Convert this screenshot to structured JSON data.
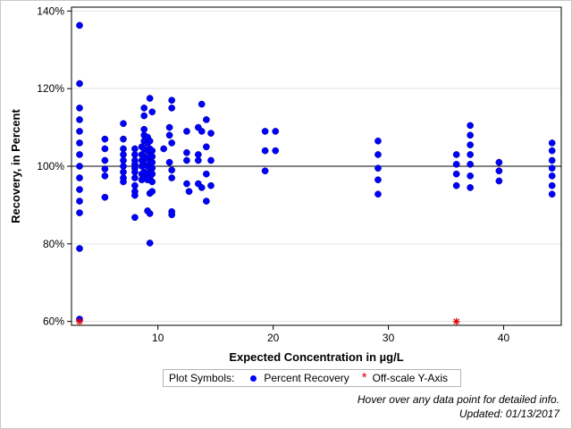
{
  "chart_data": {
    "type": "scatter",
    "xlabel": "Expected Concentration in µg/L",
    "ylabel": "Recovery, in Percent",
    "xlim": [
      2.5,
      45
    ],
    "ylim": [
      59,
      141
    ],
    "xticks": [
      10,
      20,
      30,
      40
    ],
    "yticks": [
      60,
      80,
      100,
      120,
      140
    ],
    "ytick_labels": [
      "60%",
      "80%",
      "100%",
      "120%",
      "140%"
    ],
    "reference_line_y": 100,
    "grid": "horizontal",
    "colors": {
      "recovery": "#0000ff",
      "offscale": "#e00000",
      "grid": "#e2e2e2"
    },
    "series": [
      {
        "name": "Percent Recovery",
        "marker": "circle",
        "points": [
          [
            3.2,
            136.3
          ],
          [
            3.2,
            121.3
          ],
          [
            3.2,
            115.0
          ],
          [
            3.2,
            112.0
          ],
          [
            3.2,
            109.0
          ],
          [
            3.2,
            106.0
          ],
          [
            3.2,
            103.0
          ],
          [
            3.2,
            100.0
          ],
          [
            3.2,
            97.0
          ],
          [
            3.2,
            94.0
          ],
          [
            3.2,
            91.0
          ],
          [
            3.2,
            88.0
          ],
          [
            3.2,
            78.8
          ],
          [
            3.2,
            60.6
          ],
          [
            5.4,
            107.0
          ],
          [
            5.4,
            104.5
          ],
          [
            5.4,
            101.5
          ],
          [
            5.4,
            99.3
          ],
          [
            5.4,
            97.5
          ],
          [
            5.4,
            92.0
          ],
          [
            7.0,
            111.0
          ],
          [
            7.0,
            107.0
          ],
          [
            7.0,
            104.5
          ],
          [
            7.0,
            103.0
          ],
          [
            7.0,
            101.5
          ],
          [
            7.0,
            100.0
          ],
          [
            7.0,
            98.5
          ],
          [
            7.0,
            97.0
          ],
          [
            7.0,
            96.0
          ],
          [
            8.0,
            104.5
          ],
          [
            8.0,
            103.0
          ],
          [
            8.0,
            101.5
          ],
          [
            8.0,
            100.5
          ],
          [
            8.0,
            99.5
          ],
          [
            8.0,
            98.5
          ],
          [
            8.0,
            97.0
          ],
          [
            8.0,
            95.0
          ],
          [
            8.0,
            93.5
          ],
          [
            8.0,
            92.5
          ],
          [
            8.0,
            86.8
          ],
          [
            8.6,
            105.0
          ],
          [
            8.6,
            103.0
          ],
          [
            8.6,
            101.5
          ],
          [
            8.6,
            100.0
          ],
          [
            8.6,
            98.0
          ],
          [
            8.6,
            96.5
          ],
          [
            8.8,
            115.0
          ],
          [
            8.8,
            113.0
          ],
          [
            8.8,
            109.5
          ],
          [
            8.8,
            108.0
          ],
          [
            8.8,
            106.5
          ],
          [
            8.8,
            104.5
          ],
          [
            8.8,
            102.5
          ],
          [
            8.8,
            100.5
          ],
          [
            8.8,
            98.5
          ],
          [
            8.8,
            97.0
          ],
          [
            9.1,
            107.5
          ],
          [
            9.1,
            106.0
          ],
          [
            9.1,
            104.0
          ],
          [
            9.1,
            102.0
          ],
          [
            9.1,
            100.0
          ],
          [
            9.1,
            98.0
          ],
          [
            9.1,
            96.5
          ],
          [
            9.1,
            88.5
          ],
          [
            9.3,
            117.5
          ],
          [
            9.3,
            106.5
          ],
          [
            9.3,
            104.5
          ],
          [
            9.3,
            102.5
          ],
          [
            9.3,
            100.5
          ],
          [
            9.3,
            98.5
          ],
          [
            9.3,
            97.0
          ],
          [
            9.3,
            93.0
          ],
          [
            9.3,
            87.8
          ],
          [
            9.3,
            80.2
          ],
          [
            9.5,
            114.0
          ],
          [
            9.5,
            104.0
          ],
          [
            9.5,
            102.5
          ],
          [
            9.5,
            101.0
          ],
          [
            9.5,
            99.5
          ],
          [
            9.5,
            98.0
          ],
          [
            9.5,
            96.0
          ],
          [
            9.5,
            93.5
          ],
          [
            10.5,
            104.5
          ],
          [
            11.0,
            110.0
          ],
          [
            11.0,
            108.0
          ],
          [
            11.0,
            101.0
          ],
          [
            11.2,
            117.0
          ],
          [
            11.2,
            115.0
          ],
          [
            11.2,
            106.0
          ],
          [
            11.2,
            99.0
          ],
          [
            11.2,
            97.0
          ],
          [
            11.2,
            88.3
          ],
          [
            11.2,
            87.5
          ],
          [
            12.5,
            109.0
          ],
          [
            12.5,
            103.5
          ],
          [
            12.5,
            101.5
          ],
          [
            12.5,
            95.5
          ],
          [
            12.7,
            93.5
          ],
          [
            13.5,
            110.0
          ],
          [
            13.5,
            103.0
          ],
          [
            13.5,
            101.5
          ],
          [
            13.5,
            95.5
          ],
          [
            13.8,
            116.0
          ],
          [
            13.8,
            109.0
          ],
          [
            13.8,
            94.5
          ],
          [
            14.2,
            112.0
          ],
          [
            14.2,
            105.0
          ],
          [
            14.2,
            98.0
          ],
          [
            14.2,
            91.0
          ],
          [
            14.6,
            108.5
          ],
          [
            14.6,
            101.5
          ],
          [
            14.6,
            95.0
          ],
          [
            19.3,
            109.0
          ],
          [
            19.3,
            104.0
          ],
          [
            19.3,
            98.8
          ],
          [
            20.2,
            109.0
          ],
          [
            20.2,
            104.0
          ],
          [
            29.1,
            106.5
          ],
          [
            29.1,
            103.0
          ],
          [
            29.1,
            99.5
          ],
          [
            29.1,
            96.5
          ],
          [
            29.1,
            92.8
          ],
          [
            35.9,
            103.0
          ],
          [
            35.9,
            100.5
          ],
          [
            35.9,
            98.0
          ],
          [
            35.9,
            95.0
          ],
          [
            37.1,
            110.5
          ],
          [
            37.1,
            108.0
          ],
          [
            37.1,
            105.5
          ],
          [
            37.1,
            103.0
          ],
          [
            37.1,
            100.5
          ],
          [
            37.1,
            97.5
          ],
          [
            37.1,
            94.5
          ],
          [
            39.6,
            101.0
          ],
          [
            39.6,
            98.8
          ],
          [
            39.6,
            96.2
          ],
          [
            44.2,
            106.0
          ],
          [
            44.2,
            104.0
          ],
          [
            44.2,
            101.5
          ],
          [
            44.2,
            99.5
          ],
          [
            44.2,
            97.5
          ],
          [
            44.2,
            95.0
          ],
          [
            44.2,
            92.8
          ]
        ]
      },
      {
        "name": "Off-scale Y-Axis",
        "marker": "star",
        "points": [
          [
            3.2,
            60.0
          ],
          [
            35.9,
            60.0
          ]
        ]
      }
    ]
  },
  "legend": {
    "label": "Plot Symbols:",
    "items": [
      {
        "label": "Percent Recovery"
      },
      {
        "label": "Off-scale Y-Axis"
      }
    ]
  },
  "footer": {
    "hover_note": "Hover over any data point for detailed info.",
    "updated": "Updated: 01/13/2017"
  }
}
